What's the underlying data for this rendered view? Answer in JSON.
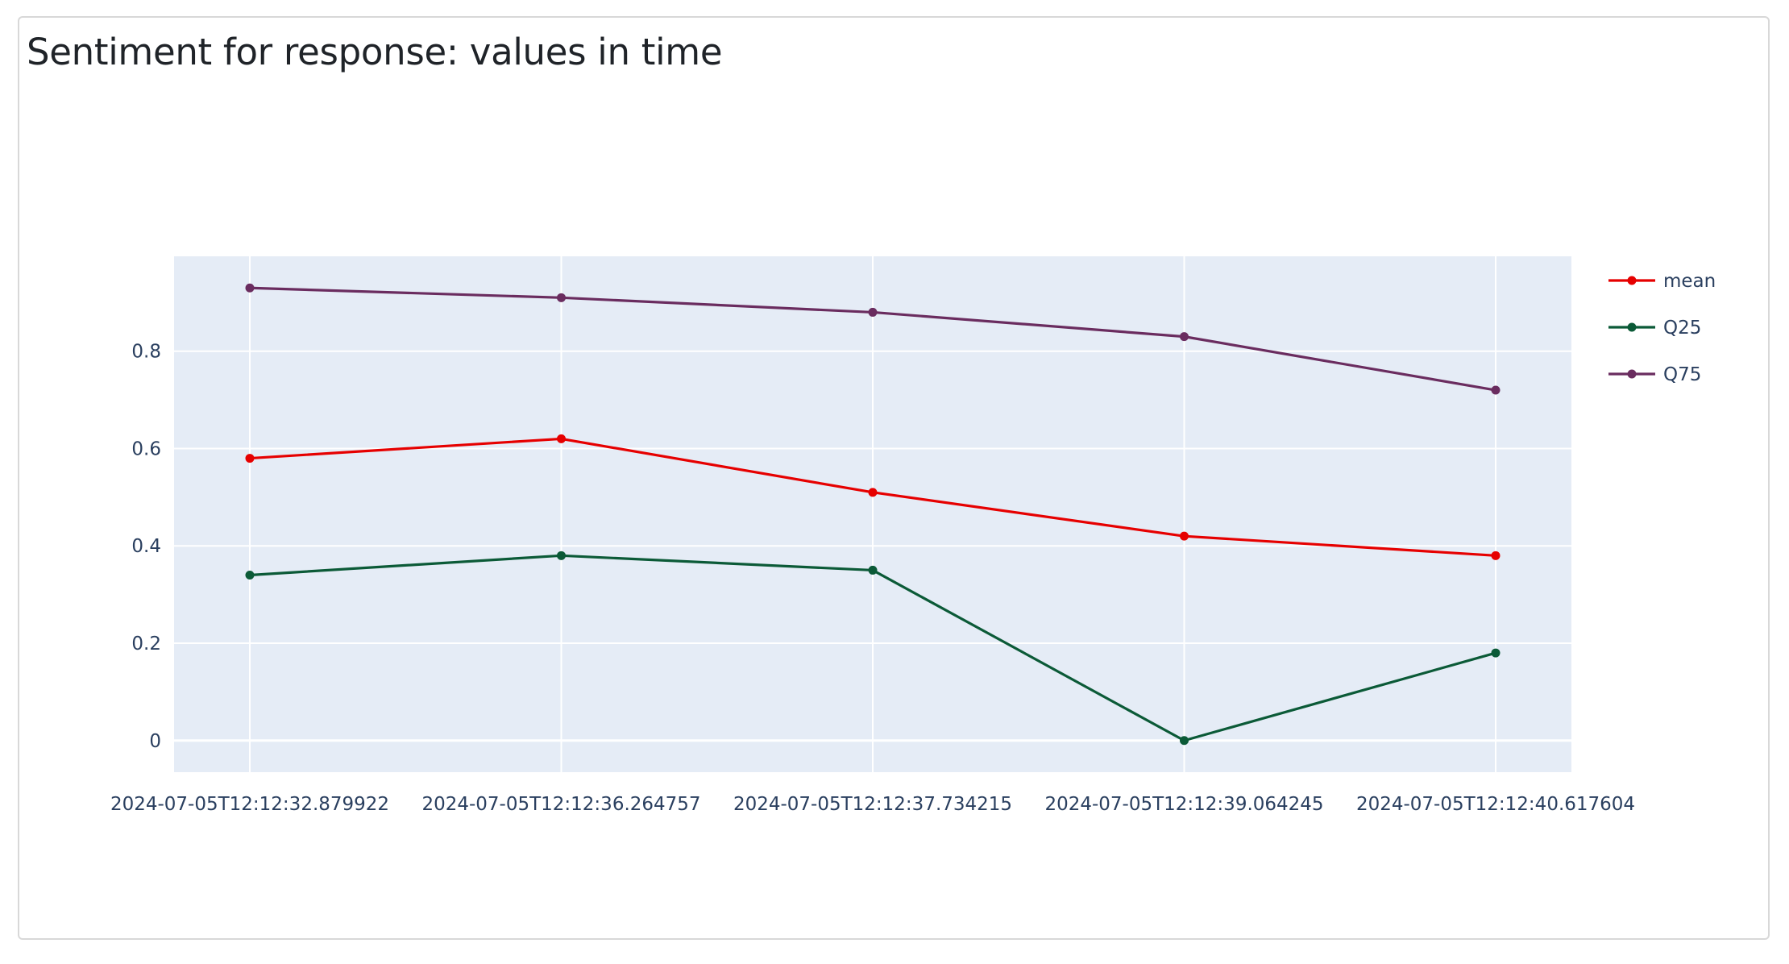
{
  "title": "Sentiment for response: values in time",
  "chart_data": {
    "type": "line",
    "title": "Sentiment for response: values in time",
    "xlabel": "",
    "ylabel": "",
    "x": [
      "2024-07-05T12:12:32.879922",
      "2024-07-05T12:12:36.264757",
      "2024-07-05T12:12:37.734215",
      "2024-07-05T12:12:39.064245",
      "2024-07-05T12:12:40.617604"
    ],
    "series": [
      {
        "name": "mean",
        "color": "#e60000",
        "values": [
          0.58,
          0.62,
          0.51,
          0.42,
          0.38
        ]
      },
      {
        "name": "Q25",
        "color": "#0b5a37",
        "values": [
          0.34,
          0.38,
          0.35,
          0.0,
          0.18
        ]
      },
      {
        "name": "Q75",
        "color": "#6a2c5f",
        "values": [
          0.93,
          0.91,
          0.88,
          0.83,
          0.72
        ]
      }
    ],
    "ylim": [
      -0.065,
      0.995
    ],
    "yticks": [
      0,
      0.2,
      0.4,
      0.6,
      0.8
    ],
    "ytick_labels": [
      "0",
      "0.2",
      "0.4",
      "0.6",
      "0.8"
    ],
    "grid": true,
    "legend": "top-right",
    "plot_bg": "#e5ecf6",
    "grid_color": "#ffffff"
  }
}
